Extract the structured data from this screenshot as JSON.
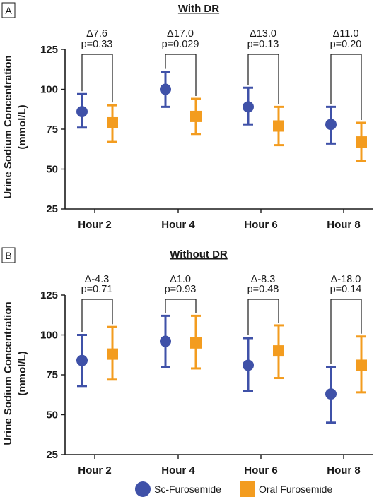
{
  "legend": {
    "items": [
      {
        "label": "Sc-Furosemide",
        "shape": "circle",
        "color": "#3f51a8"
      },
      {
        "label": "Oral Furosemide",
        "shape": "square",
        "color": "#f39c1f"
      }
    ]
  },
  "chart_data": [
    {
      "type": "scatter",
      "panel": "A",
      "title": "With DR",
      "ylabel": "Urine Sodium Concentration (mmol/L)",
      "ylabel_lines": [
        "Urine Sodium Concentration",
        "(mmol/L)"
      ],
      "ylim": [
        25,
        125
      ],
      "yticks": [
        25,
        50,
        75,
        100,
        125
      ],
      "categories": [
        "Hour 2",
        "Hour 4",
        "Hour 6",
        "Hour 8"
      ],
      "series": [
        {
          "name": "Sc-Furosemide",
          "color": "#3f51a8",
          "marker": "circle",
          "values": [
            86,
            100,
            89,
            78
          ],
          "lower": [
            76,
            89,
            78,
            66
          ],
          "upper": [
            97,
            111,
            101,
            89
          ]
        },
        {
          "name": "Oral Furosemide",
          "color": "#f39c1f",
          "marker": "square",
          "values": [
            79,
            83,
            77,
            67
          ],
          "lower": [
            67,
            72,
            65,
            55
          ],
          "upper": [
            90,
            94,
            89,
            79
          ]
        }
      ],
      "annotations": [
        {
          "delta": "Δ7.6",
          "p": "p=0.33"
        },
        {
          "delta": "Δ17.0",
          "p": "p=0.029"
        },
        {
          "delta": "Δ13.0",
          "p": "p=0.13"
        },
        {
          "delta": "Δ11.0",
          "p": "p=0.20"
        }
      ]
    },
    {
      "type": "scatter",
      "panel": "B",
      "title": "Without DR",
      "ylabel": "Urine Sodium Concentration (mmol/L)",
      "ylabel_lines": [
        "Urine Sodium Concentration",
        "(mmol/L)"
      ],
      "ylim": [
        25,
        125
      ],
      "yticks": [
        25,
        50,
        75,
        100,
        125
      ],
      "categories": [
        "Hour 2",
        "Hour 4",
        "Hour 6",
        "Hour 8"
      ],
      "series": [
        {
          "name": "Sc-Furosemide",
          "color": "#3f51a8",
          "marker": "circle",
          "values": [
            84,
            96,
            81,
            63
          ],
          "lower": [
            68,
            80,
            65,
            45
          ],
          "upper": [
            100,
            112,
            98,
            80
          ]
        },
        {
          "name": "Oral Furosemide",
          "color": "#f39c1f",
          "marker": "square",
          "values": [
            88,
            95,
            90,
            81
          ],
          "lower": [
            72,
            79,
            73,
            64
          ],
          "upper": [
            105,
            112,
            106,
            99
          ]
        }
      ],
      "annotations": [
        {
          "delta": "Δ-4.3",
          "p": "p=0.71"
        },
        {
          "delta": "Δ1.0",
          "p": "p=0.93"
        },
        {
          "delta": "Δ-8.3",
          "p": "p=0.48"
        },
        {
          "delta": "Δ-18.0",
          "p": "p=0.14"
        }
      ]
    }
  ]
}
